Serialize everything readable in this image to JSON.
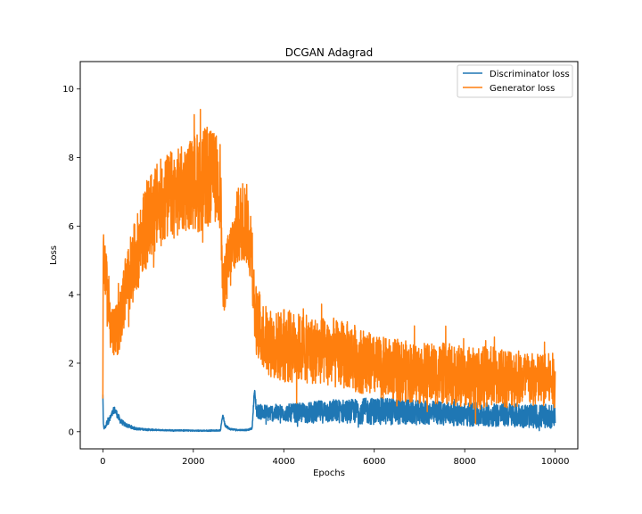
{
  "chart_data": {
    "type": "line",
    "title": "DCGAN Adagrad",
    "xlabel": "Epochs",
    "ylabel": "Loss",
    "xlim": [
      -500,
      10500
    ],
    "ylim": [
      -0.5,
      10.8
    ],
    "xticks": [
      0,
      2000,
      4000,
      6000,
      8000,
      10000
    ],
    "yticks": [
      0,
      2,
      4,
      6,
      8,
      10
    ],
    "legend_position": "top-right",
    "grid": false,
    "series": [
      {
        "name": "Discriminator loss",
        "color": "#1f77b4",
        "x": [
          0,
          10,
          30,
          60,
          100,
          150,
          200,
          250,
          300,
          350,
          400,
          500,
          600,
          700,
          800,
          1000,
          1200,
          1500,
          1800,
          2000,
          2300,
          2600,
          2650,
          2700,
          2800,
          3000,
          3200,
          3300,
          3350,
          3400,
          3600,
          3800,
          4000,
          4500,
          5000,
          5500,
          6000,
          6500,
          7000,
          7500,
          8000,
          8500,
          9000,
          9500,
          10000
        ],
        "values": [
          1.1,
          0.2,
          0.1,
          0.15,
          0.3,
          0.35,
          0.5,
          0.65,
          0.55,
          0.4,
          0.3,
          0.2,
          0.15,
          0.1,
          0.08,
          0.06,
          0.05,
          0.04,
          0.04,
          0.03,
          0.03,
          0.04,
          0.5,
          0.2,
          0.08,
          0.05,
          0.05,
          0.1,
          1.2,
          0.6,
          0.55,
          0.55,
          0.55,
          0.55,
          0.6,
          0.6,
          0.6,
          0.6,
          0.55,
          0.55,
          0.5,
          0.5,
          0.5,
          0.45,
          0.45
        ],
        "band": [
          0.05,
          0.05,
          0.05,
          0.05,
          0.1,
          0.1,
          0.1,
          0.1,
          0.1,
          0.1,
          0.08,
          0.06,
          0.05,
          0.04,
          0.03,
          0.03,
          0.02,
          0.02,
          0.02,
          0.02,
          0.02,
          0.02,
          0.05,
          0.05,
          0.03,
          0.02,
          0.02,
          0.03,
          0.1,
          0.2,
          0.25,
          0.25,
          0.25,
          0.3,
          0.35,
          0.35,
          0.4,
          0.4,
          0.35,
          0.35,
          0.35,
          0.35,
          0.35,
          0.35,
          0.35
        ]
      },
      {
        "name": "Generator loss",
        "color": "#ff7f0e",
        "x": [
          0,
          10,
          30,
          60,
          100,
          150,
          200,
          250,
          300,
          400,
          500,
          700,
          900,
          1100,
          1300,
          1500,
          1700,
          1900,
          2100,
          2300,
          2500,
          2600,
          2650,
          2700,
          2800,
          2900,
          3000,
          3100,
          3200,
          3300,
          3350,
          3400,
          3600,
          3800,
          4000,
          4500,
          5000,
          5500,
          6000,
          6500,
          7000,
          7500,
          8000,
          8500,
          9000,
          9500,
          10000
        ],
        "values": [
          1.2,
          5.8,
          5.0,
          4.5,
          4.0,
          3.5,
          3.0,
          2.8,
          2.9,
          3.4,
          4.2,
          5.0,
          5.8,
          6.4,
          6.7,
          6.9,
          7.0,
          7.2,
          7.3,
          7.4,
          7.4,
          7.2,
          4.0,
          4.5,
          5.0,
          5.6,
          6.0,
          6.2,
          6.0,
          5.2,
          3.6,
          3.2,
          2.7,
          2.5,
          2.5,
          2.4,
          2.3,
          2.2,
          1.9,
          1.8,
          1.7,
          1.7,
          1.6,
          1.6,
          1.6,
          1.5,
          1.5
        ],
        "band": [
          0.3,
          0.4,
          0.6,
          0.8,
          1.0,
          1.0,
          0.9,
          0.8,
          0.8,
          0.9,
          1.0,
          1.1,
          1.2,
          1.3,
          1.3,
          1.3,
          1.3,
          1.3,
          1.5,
          1.5,
          1.3,
          1.3,
          0.8,
          0.9,
          1.0,
          1.1,
          1.2,
          1.2,
          1.2,
          1.2,
          1.0,
          1.0,
          1.0,
          1.0,
          1.1,
          1.0,
          1.0,
          1.0,
          0.9,
          0.9,
          0.9,
          0.9,
          0.9,
          0.9,
          0.9,
          0.8,
          0.8
        ]
      }
    ]
  }
}
